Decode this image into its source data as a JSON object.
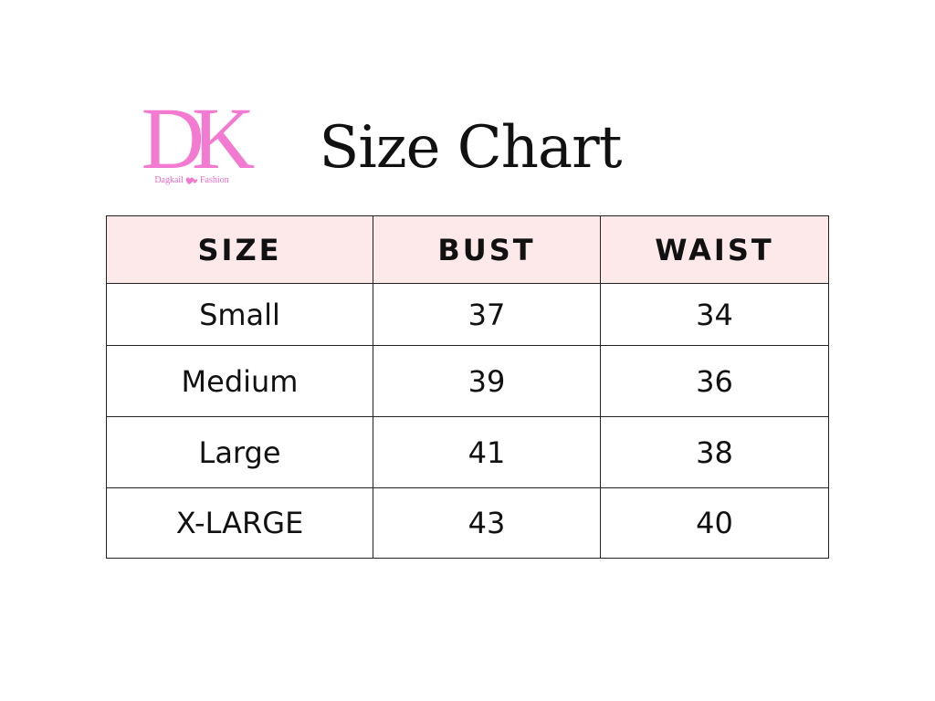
{
  "logo": {
    "mark": "DK",
    "tagline": [
      "Dagkail",
      "Fashion"
    ]
  },
  "header": {
    "title": "Size Chart"
  },
  "table": {
    "columns": [
      "SIZE",
      "BUST",
      "WAIST"
    ],
    "rows": [
      [
        "Small",
        "37",
        "34"
      ],
      [
        "Medium",
        "39",
        "36"
      ],
      [
        "Large",
        "41",
        "38"
      ],
      [
        "X-LARGE",
        "43",
        "40"
      ]
    ]
  }
}
